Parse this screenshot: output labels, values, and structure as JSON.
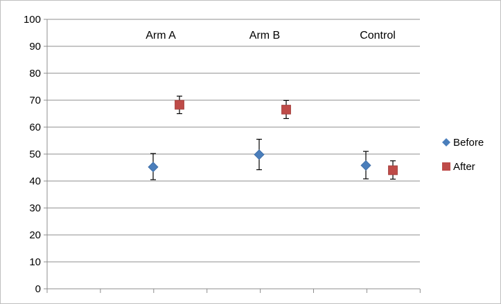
{
  "chart_data": {
    "type": "scatter",
    "categories": [
      "Arm A",
      "Arm B",
      "Control"
    ],
    "ylim": [
      0,
      100
    ],
    "yticks": [
      0,
      10,
      20,
      30,
      40,
      50,
      60,
      70,
      80,
      90,
      100
    ],
    "grid": true,
    "legend_position": "right",
    "series": [
      {
        "name": "Before",
        "marker": "diamond",
        "color": "#4a7ebb",
        "values": [
          45.2,
          49.8,
          45.8
        ],
        "error_low": [
          40.5,
          44.2,
          40.8
        ],
        "error_high": [
          50.2,
          55.5,
          51.0
        ]
      },
      {
        "name": "After",
        "marker": "square",
        "color": "#be4b48",
        "values": [
          68.3,
          66.5,
          44.0
        ],
        "error_low": [
          65.0,
          63.2,
          40.7
        ],
        "error_high": [
          71.5,
          69.9,
          47.5
        ]
      }
    ]
  }
}
